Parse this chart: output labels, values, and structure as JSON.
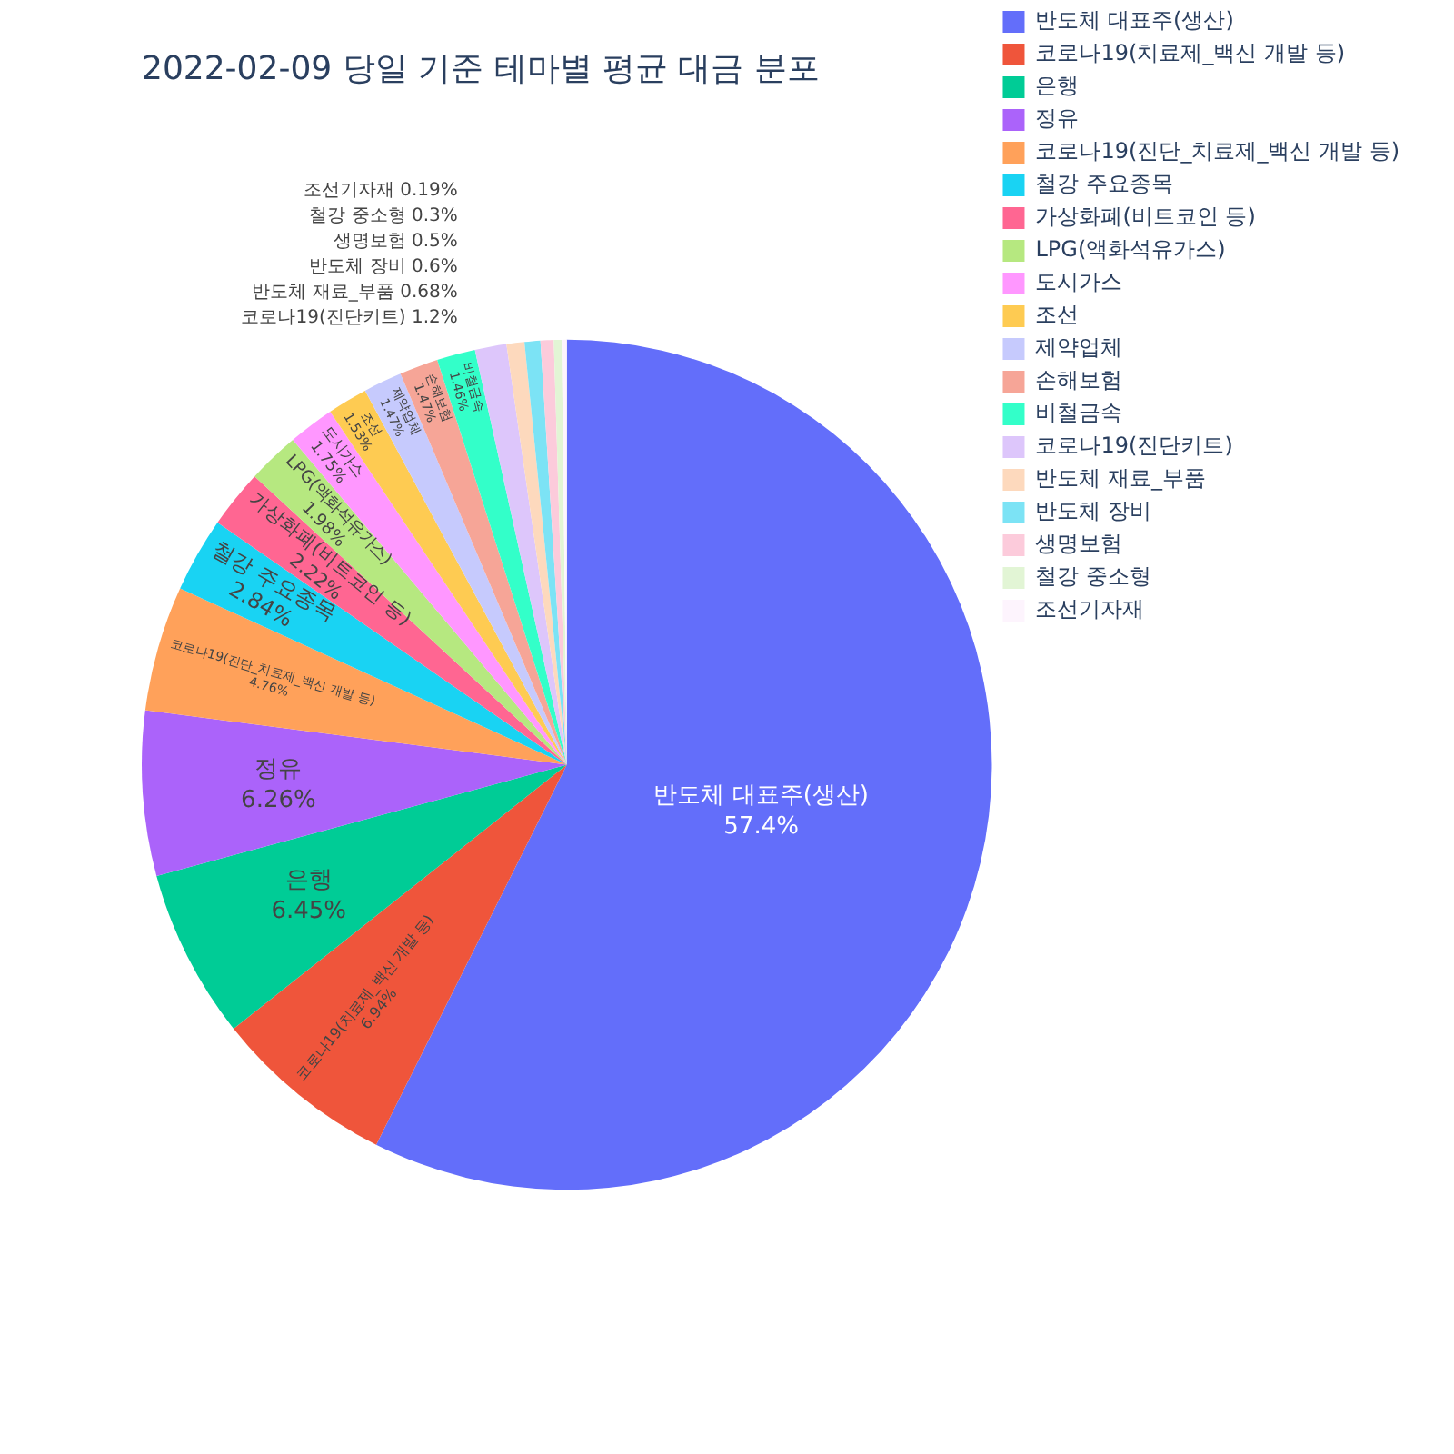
{
  "chart_data": {
    "type": "pie",
    "title": "2022-02-09 당일 기준 테마별 평균 대금 분포",
    "categories": [
      "반도체 대표주(생산)",
      "코로나19(치료제_백신 개발 등)",
      "은행",
      "정유",
      "코로나19(진단_치료제_백신 개발 등)",
      "철강 주요종목",
      "가상화폐(비트코인 등)",
      "LPG(액화석유가스)",
      "도시가스",
      "조선",
      "제약업체",
      "손해보험",
      "비철금속",
      "코로나19(진단키트)",
      "반도체 재료_부품",
      "반도체 장비",
      "생명보험",
      "철강 중소형",
      "조선기자재"
    ],
    "values": [
      57.4,
      6.94,
      6.45,
      6.26,
      4.76,
      2.84,
      2.22,
      1.98,
      1.75,
      1.53,
      1.47,
      1.47,
      1.46,
      1.2,
      0.68,
      0.6,
      0.5,
      0.3,
      0.19
    ],
    "value_labels": [
      "57.4%",
      "6.94%",
      "6.45%",
      "6.26%",
      "4.76%",
      "2.84%",
      "2.22%",
      "1.98%",
      "1.75%",
      "1.53%",
      "1.47%",
      "1.47%",
      "1.46%",
      "1.2%",
      "0.68%",
      "0.6%",
      "0.5%",
      "0.3%",
      "0.19%"
    ],
    "colors": [
      "#636efa",
      "#ef553b",
      "#00cc96",
      "#ab63fa",
      "#ffa15a",
      "#19d3f3",
      "#ff6692",
      "#b6e880",
      "#ff97ff",
      "#fecb52",
      "#c6cafd",
      "#f6a597",
      "#33ffc9",
      "#ddc6fb",
      "#fdd9bd",
      "#7ce3f5",
      "#fccbdb",
      "#e2f5d5",
      "#fdf4fd"
    ],
    "legend": "top right"
  }
}
